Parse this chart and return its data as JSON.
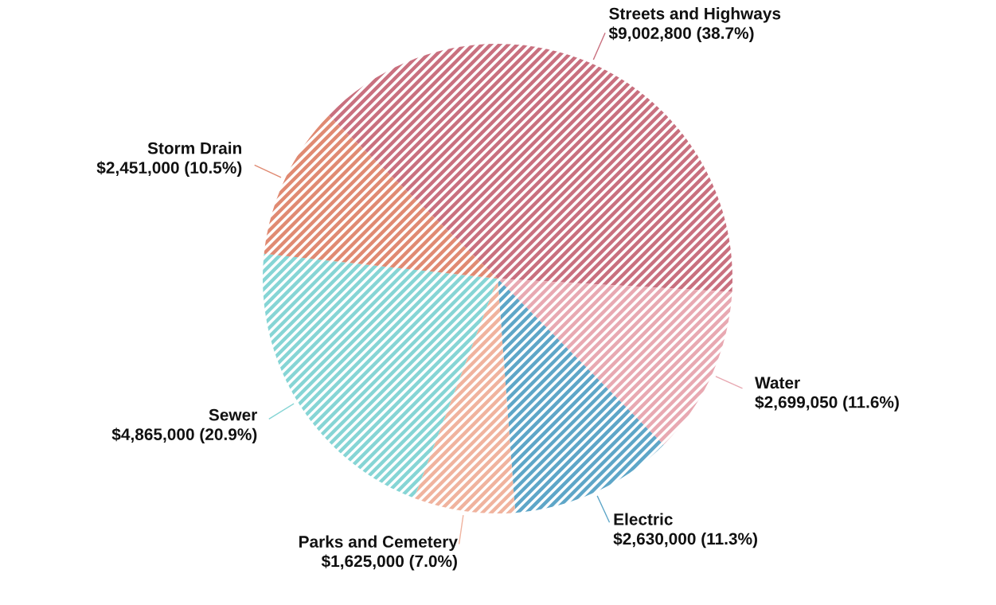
{
  "chart_data": {
    "type": "pie",
    "categories": [
      "Streets and Highways",
      "Water",
      "Electric",
      "Parks and Cemetery",
      "Sewer",
      "Storm Drain"
    ],
    "values": [
      9002800,
      2699050,
      2630000,
      1625000,
      4865000,
      2451000
    ],
    "value_labels": [
      "$9,002,800 (38.7%)",
      "$2,699,050 (11.6%)",
      "$2,630,000 (11.3%)",
      "$1,625,000 (7.0%)",
      "$4,865,000 (20.9%)",
      "$2,451,000 (10.5%)"
    ],
    "colors": [
      "#c9707f",
      "#e8a9b2",
      "#5ea6c8",
      "#f0b39e",
      "#86d5d5",
      "#e08a72"
    ],
    "legend": false
  }
}
